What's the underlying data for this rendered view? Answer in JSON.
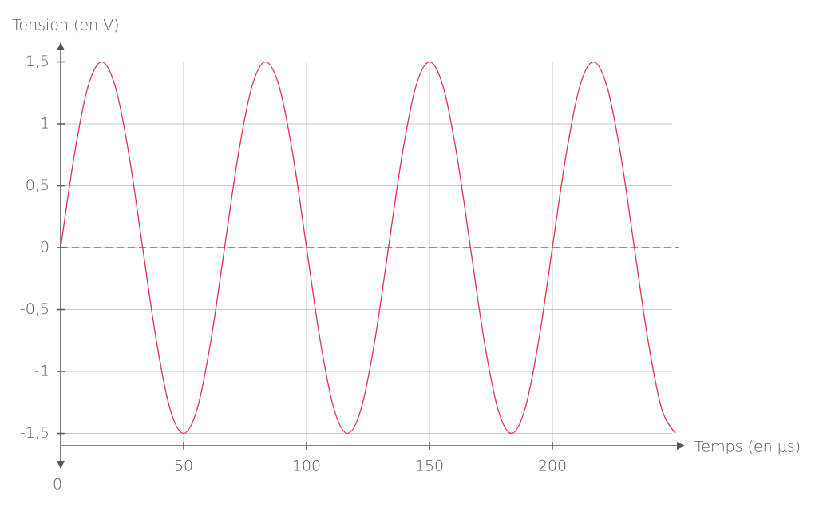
{
  "chart_data": {
    "type": "line",
    "y_label": "Tension (en V)",
    "x_label": "Temps (en μs)",
    "x": [
      0,
      5.56,
      11.11,
      16.67,
      22.22,
      27.78,
      33.33,
      38.89,
      44.44,
      50,
      55.56,
      61.11,
      66.67,
      72.22,
      77.78,
      83.33,
      88.89,
      94.44,
      100,
      105.56,
      111.11,
      116.67,
      122.22,
      127.78,
      133.33,
      138.89,
      144.44,
      150,
      155.56,
      161.11,
      166.67,
      172.22,
      177.78,
      183.33,
      188.89,
      194.44,
      200,
      205.56,
      211.11,
      216.67,
      222.22,
      227.78,
      233.33,
      238.89,
      244.44,
      250
    ],
    "series": [
      {
        "color": "#e0334f",
        "values": [
          0,
          0.75,
          1.3,
          1.5,
          1.3,
          0.75,
          0,
          -0.75,
          -1.3,
          -1.5,
          -1.3,
          -0.75,
          0,
          0.75,
          1.3,
          1.5,
          1.3,
          0.75,
          0,
          -0.75,
          -1.3,
          -1.5,
          -1.3,
          -0.75,
          0,
          0.75,
          1.3,
          1.5,
          1.3,
          0.75,
          0,
          -0.75,
          -1.3,
          -1.5,
          -1.3,
          -0.75,
          0,
          0.75,
          1.3,
          1.5,
          1.3,
          0.75,
          0,
          -0.75,
          -1.3,
          -1.5
        ]
      }
    ],
    "hline": 0,
    "xlim": [
      0,
      250
    ],
    "ylim": [
      -1.6,
      1.6
    ],
    "xticks": [
      0,
      50,
      100,
      150,
      200
    ],
    "yticks": [
      {
        "value": -1.5,
        "label": "-1,5"
      },
      -1,
      {
        "value": -0.5,
        "label": "-0,5"
      },
      0,
      {
        "value": 0.5,
        "label": "0,5"
      },
      1,
      {
        "value": 1.5,
        "label": "1,5"
      }
    ],
    "grid": true
  }
}
